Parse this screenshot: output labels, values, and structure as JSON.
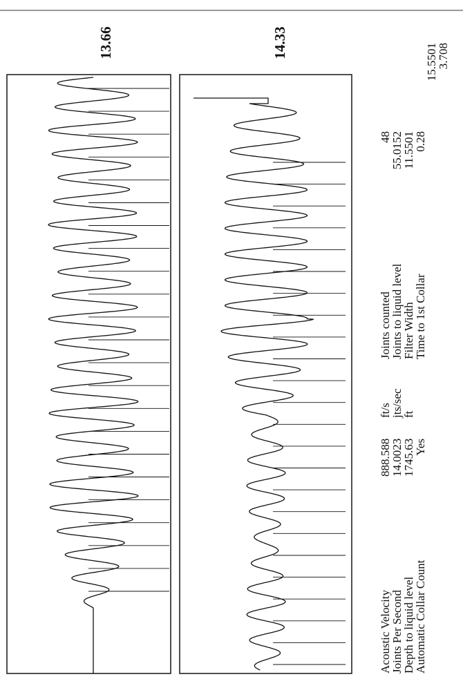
{
  "chart_data": [
    {
      "type": "line",
      "panel": "left",
      "peak_label": "13.66",
      "marker_count": 23,
      "cycles": 22.5
    },
    {
      "type": "line",
      "panel": "right",
      "peak_label": "14.33",
      "marker_count": 24,
      "cycles": 22
    }
  ],
  "results": {
    "labels": [
      "Acoustic Velocity",
      "Joints Per Second",
      "Depth to liquid level",
      "Automatic Collar Count"
    ],
    "values": [
      "888.588",
      "14.0023",
      "1745.63",
      "Yes"
    ],
    "units": [
      "ft/s",
      "jts/sec",
      "ft",
      ""
    ],
    "labels2": [
      "Joints counted",
      "Joints to liquid level",
      "Filter Width",
      "Time to 1st Collar"
    ],
    "values2": [
      "48",
      "55.0152",
      "11.5501",
      "0.28"
    ],
    "values3": [
      "15.5501",
      "3.708"
    ]
  }
}
